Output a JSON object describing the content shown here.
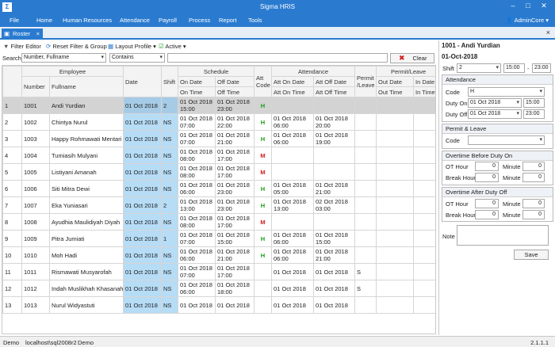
{
  "window": {
    "title": "Sigma HRIS",
    "logo": "Σ"
  },
  "menu": [
    "File",
    "Home",
    "Human Resources",
    "Attendance",
    "Payroll",
    "Process",
    "Report",
    "Tools"
  ],
  "user": "AdminCore",
  "tab": {
    "label": "Roster"
  },
  "toolbar": {
    "filter_editor": "Filter Editor",
    "reset": "Reset Filter & Group",
    "layout": "Layout Profile",
    "active": "Active"
  },
  "search": {
    "label": "Search",
    "field": "Number, Fullname",
    "op": "Contains",
    "value": "",
    "clear": "Clear"
  },
  "grid": {
    "groups": {
      "employee": "Employee",
      "schedule": "Schedule",
      "attendance": "Attendance",
      "permit": "Permit/Leave"
    },
    "cols": {
      "number": "Number",
      "fullname": "Fullname",
      "date": "Date",
      "shift": "Shift",
      "on_date": "On Date",
      "off_date": "Off Date",
      "on_time": "On Time",
      "off_time": "Off Time",
      "att_code": "Att Code",
      "att_on_date": "Att On Date",
      "att_off_date": "Att Off Date",
      "att_on_time": "Att On Time",
      "att_off_time": "Att Off Time",
      "permit_leave": "Permit /Leave",
      "out_date": "Out Date",
      "in_date": "In Date",
      "out_time": "Out Time",
      "in_time": "In Time"
    },
    "rows": [
      {
        "idx": "1",
        "num": "1001",
        "name": "Andi Yurdian",
        "date": "01 Oct 2018",
        "shift": "2",
        "on": "01 Oct 2018",
        "on_t": "15:00",
        "off": "01 Oct 2018",
        "off_t": "23:00",
        "code": "H",
        "aon": "",
        "aon_t": "",
        "aoff": "",
        "aoff_t": "",
        "pl": ""
      },
      {
        "idx": "2",
        "num": "1002",
        "name": "Chintya Nurul",
        "date": "01 Oct 2018",
        "shift": "NS",
        "on": "01 Oct 2018",
        "on_t": "07:00",
        "off": "01 Oct 2018",
        "off_t": "22:00",
        "code": "H",
        "aon": "01 Oct 2018",
        "aon_t": "06:00",
        "aoff": "01 Oct 2018",
        "aoff_t": "20:00",
        "pl": ""
      },
      {
        "idx": "3",
        "num": "1003",
        "name": "Happy Rohmawati Mentari",
        "date": "01 Oct 2018",
        "shift": "NS",
        "on": "01 Oct 2018",
        "on_t": "07:00",
        "off": "01 Oct 2018",
        "off_t": "21:00",
        "code": "H",
        "aon": "01 Oct 2018",
        "aon_t": "06:00",
        "aoff": "01 Oct 2018",
        "aoff_t": "19:00",
        "pl": ""
      },
      {
        "idx": "4",
        "num": "1004",
        "name": "Tumiasih Mulyani",
        "date": "01 Oct 2018",
        "shift": "NS",
        "on": "01 Oct 2018",
        "on_t": "08:00",
        "off": "01 Oct 2018",
        "off_t": "17:00",
        "code": "M",
        "aon": "",
        "aon_t": "",
        "aoff": "",
        "aoff_t": "",
        "pl": ""
      },
      {
        "idx": "5",
        "num": "1005",
        "name": "Listiyani Amanah",
        "date": "01 Oct 2018",
        "shift": "NS",
        "on": "01 Oct 2018",
        "on_t": "08:00",
        "off": "01 Oct 2018",
        "off_t": "17:00",
        "code": "M",
        "aon": "",
        "aon_t": "",
        "aoff": "",
        "aoff_t": "",
        "pl": ""
      },
      {
        "idx": "6",
        "num": "1006",
        "name": "Siti Mitra Dewi",
        "date": "01 Oct 2018",
        "shift": "NS",
        "on": "01 Oct 2018",
        "on_t": "06:00",
        "off": "01 Oct 2018",
        "off_t": "23:00",
        "code": "H",
        "aon": "01 Oct 2018",
        "aon_t": "05:00",
        "aoff": "01 Oct 2018",
        "aoff_t": "21:00",
        "pl": ""
      },
      {
        "idx": "7",
        "num": "1007",
        "name": "Eka Yuniasari",
        "date": "01 Oct 2018",
        "shift": "2",
        "on": "01 Oct 2018",
        "on_t": "13:00",
        "off": "01 Oct 2018",
        "off_t": "23:00",
        "code": "H",
        "aon": "01 Oct 2018",
        "aon_t": "13:00",
        "aoff": "02 Oct 2018",
        "aoff_t": "03:00",
        "pl": ""
      },
      {
        "idx": "8",
        "num": "1008",
        "name": "Ayudhia Maulidiyah Diyah",
        "date": "01 Oct 2018",
        "shift": "NS",
        "on": "01 Oct 2018",
        "on_t": "08:00",
        "off": "01 Oct 2018",
        "off_t": "17:00",
        "code": "M",
        "aon": "",
        "aon_t": "",
        "aoff": "",
        "aoff_t": "",
        "pl": ""
      },
      {
        "idx": "9",
        "num": "1009",
        "name": "Pitra Jumiati",
        "date": "01 Oct 2018",
        "shift": "1",
        "on": "01 Oct 2018",
        "on_t": "07:00",
        "off": "01 Oct 2018",
        "off_t": "15:00",
        "code": "H",
        "aon": "01 Oct 2018",
        "aon_t": "06:00",
        "aoff": "01 Oct 2018",
        "aoff_t": "15:00",
        "pl": ""
      },
      {
        "idx": "10",
        "num": "1010",
        "name": "Moh Hadi",
        "date": "01 Oct 2018",
        "shift": "NS",
        "on": "01 Oct 2018",
        "on_t": "06:00",
        "off": "01 Oct 2018",
        "off_t": "21:00",
        "code": "H",
        "aon": "01 Oct 2018",
        "aon_t": "06:00",
        "aoff": "01 Oct 2018",
        "aoff_t": "21:00",
        "pl": ""
      },
      {
        "idx": "11",
        "num": "1011",
        "name": "Rismawati Musyarofah",
        "date": "01 Oct 2018",
        "shift": "NS",
        "on": "01 Oct 2018",
        "on_t": "07:00",
        "off": "01 Oct 2018",
        "off_t": "17:00",
        "code": "",
        "aon": "01 Oct 2018",
        "aon_t": "",
        "aoff": "01 Oct 2018",
        "aoff_t": "",
        "pl": "S"
      },
      {
        "idx": "12",
        "num": "1012",
        "name": "Indah Muslikhah Khasanah",
        "date": "01 Oct 2018",
        "shift": "NS",
        "on": "01 Oct 2018",
        "on_t": "06:00",
        "off": "01 Oct 2018",
        "off_t": "18:00",
        "code": "",
        "aon": "01 Oct 2018",
        "aon_t": "",
        "aoff": "01 Oct 2018",
        "aoff_t": "",
        "pl": "S"
      },
      {
        "idx": "13",
        "num": "1013",
        "name": "Nurul Widyastuti",
        "date": "01 Oct 2018",
        "shift": "NS",
        "on": "01 Oct 2018",
        "on_t": "",
        "off": "01 Oct 2018",
        "off_t": "",
        "code": "",
        "aon": "01 Oct 2018",
        "aon_t": "",
        "aoff": "01 Oct 2018",
        "aoff_t": "",
        "pl": ""
      }
    ]
  },
  "panel": {
    "employee": "1001 - Andi Yurdian",
    "date": "01-Oct-2018",
    "shift_label": "Shift",
    "shift": "2",
    "shift_from": "15:00",
    "shift_sep": "-",
    "shift_to": "23:00",
    "attendance": {
      "title": "Attendance",
      "code_label": "Code",
      "code": "H",
      "on_label": "Duty On",
      "on_date": "01 Oct 2018",
      "on_time": "15:00",
      "off_label": "Duty Off",
      "off_date": "01 Oct 2018",
      "off_time": "23:00"
    },
    "permit": {
      "title": "Permit & Leave",
      "code_label": "Code",
      "code": ""
    },
    "ot_before": {
      "title": "Overtime Before Duty On",
      "ot_label": "OT Hour",
      "ot": "0",
      "min_label": "Minute",
      "min": "0",
      "break_label": "Break Hour",
      "brk": "0",
      "min2_label": "Minute",
      "min2": "0"
    },
    "ot_after": {
      "title": "Overtime After Duty Off",
      "ot_label": "OT Hour",
      "ot": "0",
      "min_label": "Minute",
      "min": "0",
      "break_label": "Break Hour",
      "brk": "0",
      "min2_label": "Minute",
      "min2": "0"
    },
    "note_label": "Note",
    "save": "Save"
  },
  "status": {
    "env": "Demo",
    "server": "localhost\\sql2008r2",
    "db": "Demo",
    "version": "2.1.1.1"
  }
}
